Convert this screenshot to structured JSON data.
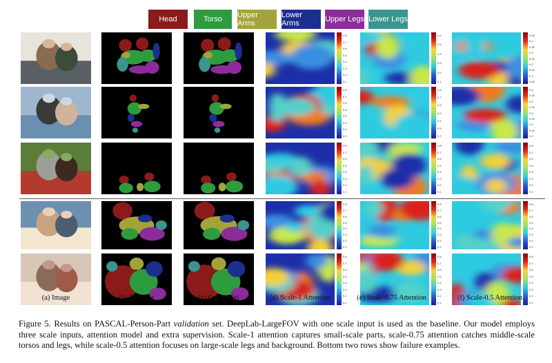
{
  "legend": [
    {
      "label": "Head",
      "color": "#8b1a1a"
    },
    {
      "label": "Torso",
      "color": "#2e9b3f"
    },
    {
      "label": "Upper Arms",
      "color": "#a4a33a"
    },
    {
      "label": "Lower Arms",
      "color": "#1c2f8f"
    },
    {
      "label": "Upper Legs",
      "color": "#8c2c9b"
    },
    {
      "label": "Lower Legs",
      "color": "#3a9590"
    }
  ],
  "columns": [
    "(a) Image",
    "(b) Baseline",
    "(c) Our model",
    "(d) Scale-1 Attention",
    "(e) Scale-0.75 Attention",
    "(f) Scale-0.5 Attention"
  ],
  "colorbar_ticks": [
    [
      "0.8",
      "0.7",
      "0.6",
      "0.5",
      "0.4",
      "0.3",
      "0.2",
      "0.1"
    ],
    [
      "0.6",
      "0.5",
      "0.4",
      "0.3",
      "0.2",
      "0.1"
    ],
    [
      "0.45",
      "0.4",
      "0.35",
      "0.3",
      "0.25",
      "0.2",
      "0.15",
      "0.1",
      "0.05"
    ],
    [
      "0.8",
      "0.7",
      "0.6",
      "0.5",
      "0.4",
      "0.3",
      "0.2",
      "0.1"
    ],
    [
      "0.8",
      "0.7",
      "0.6",
      "0.5",
      "0.4",
      "0.3",
      "0.2"
    ],
    [
      "0.5",
      "0.45",
      "0.4",
      "0.35",
      "0.3",
      "0.25",
      "0.2",
      "0.15",
      "0.1"
    ]
  ],
  "caption": {
    "figure_label": "Figure 5.",
    "text_1": " Results on PASCAL-Person-Part ",
    "text_italic": "validation",
    "text_2": " set. DeepLab-LargeFOV with one scale input is used as the baseline. Our model employs three scale inputs, attention model and extra supervision. Scale-1 attention captures small-scale parts, scale-0.75 attention catches middle-scale torsos and legs, while scale-0.5 attention focuses on large-scale legs and background. Bottom two rows show failure examples."
  },
  "colors": {
    "jet_low": "#1c2fa8",
    "jet_mid": "#2ecbe0",
    "jet_high": "#d9231b",
    "background": "#000000"
  }
}
